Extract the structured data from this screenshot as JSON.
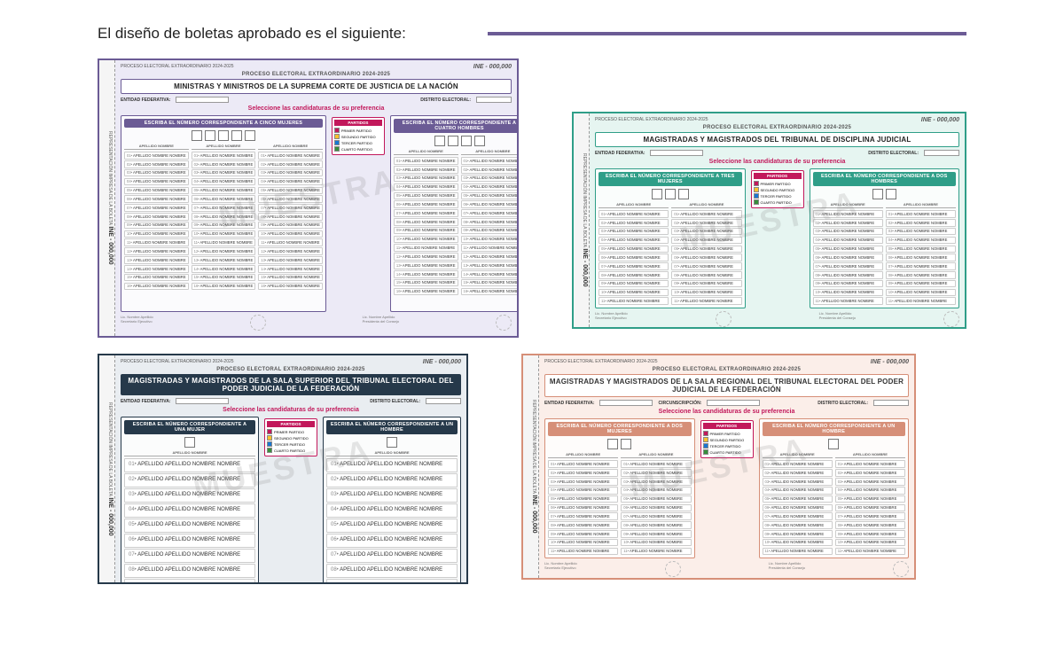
{
  "page": {
    "intro_text": "El diseño de boletas aprobado es el siguiente:",
    "accent_rule_color": "#6b5b95"
  },
  "common": {
    "process_title": "PROCESO ELECTORAL EXTRAORDINARIO 2024-2025",
    "ine_number": "INE - 000,000",
    "entity_label": "ENTIDAD FEDERATIVA:",
    "district_label": "DISTRITO ELECTORAL:",
    "circ_label": "CIRCUNSCRIPCIÓN:",
    "select_text": "Seleccione las candidaturas de su preferencia",
    "candidate_placeholder_long": "APELLIDO APELLIDO NOMBRE NOMBRE",
    "candidate_placeholder_short": "APELLIDO NOMBRE NOMBRE",
    "partidos_title": "PARTIDOS",
    "spine_extra": "REPRESENTACIÓN IMPRESA DE LA BOLETA",
    "colhead_text": "APELLIDO NOMBRE",
    "watermark": "MUESTRA",
    "partidos_list": [
      "PRIMER PARTIDO",
      "SEGUNDO PARTIDO",
      "TERCER PARTIDO",
      "CUARTO PARTIDO"
    ],
    "partidos_colors": [
      "#c2185b",
      "#fbc02d",
      "#1976d2",
      "#388e3c"
    ]
  },
  "ballots": {
    "purple": {
      "accent": "#8d82c4",
      "accent_dark": "#6b5b95",
      "bg_tint": "#eceaf6",
      "title": "MINISTRAS Y MINISTROS DE LA SUPREMA CORTE DE JUSTICIA DE LA NACIÓN",
      "section_left": "ESCRIBA EL NÚMERO CORRESPONDIENTE A CINCO MUJERES",
      "section_right": "ESCRIBA EL NÚMERO CORRESPONDIENTE A CUATRO HOMBRES",
      "left_boxes": 5,
      "right_boxes": 4,
      "left_cols": 3,
      "right_cols": 2,
      "rows_per_col": 16,
      "show_partidos": true,
      "extra_fields": [
        "entity",
        "district"
      ]
    },
    "teal": {
      "accent": "#5fbfa9",
      "accent_dark": "#2f9e88",
      "bg_tint": "#e6f5f1",
      "title": "MAGISTRADAS Y MAGISTRADOS DEL TRIBUNAL DE DISCIPLINA JUDICIAL",
      "section_left": "ESCRIBA EL NÚMERO CORRESPONDIENTE A TRES MUJERES",
      "section_right": "ESCRIBA EL NÚMERO CORRESPONDIENTE A DOS HOMBRES",
      "left_boxes": 3,
      "right_boxes": 2,
      "left_cols": 2,
      "right_cols": 2,
      "rows_per_col": 11,
      "show_partidos": true,
      "extra_fields": [
        "entity",
        "district"
      ]
    },
    "navy": {
      "accent": "#3c5366",
      "accent_dark": "#26394a",
      "bg_tint": "#e9edf1",
      "title": "MAGISTRADAS Y MAGISTRADOS DE LA SALA SUPERIOR DEL TRIBUNAL ELECTORAL DEL PODER JUDICIAL DE LA FEDERACIÓN",
      "section_left": "ESCRIBA EL NÚMERO CORRESPONDIENTE A UNA MUJER",
      "section_right": "ESCRIBA EL NÚMERO CORRESPONDIENTE A UN HOMBRE",
      "left_boxes": 1,
      "right_boxes": 1,
      "left_cols": 1,
      "right_cols": 1,
      "rows_per_col": 9,
      "candidate_large": true,
      "show_partidos": true,
      "extra_fields": [
        "entity",
        "district"
      ]
    },
    "salmon": {
      "accent": "#eecdc2",
      "accent_dark": "#d68f78",
      "bg_tint": "#fbeee9",
      "title": "MAGISTRADAS Y MAGISTRADOS DE LA SALA REGIONAL DEL TRIBUNAL ELECTORAL DEL PODER JUDICIAL DE LA FEDERACIÓN",
      "section_left": "ESCRIBA EL NÚMERO CORRESPONDIENTE A DOS MUJERES",
      "section_right": "ESCRIBA EL NÚMERO CORRESPONDIENTE A UN HOMBRE",
      "left_boxes": 2,
      "right_boxes": 1,
      "left_cols": 2,
      "right_cols": 2,
      "rows_per_col": 11,
      "show_partidos": true,
      "extra_fields": [
        "entity",
        "circ",
        "district"
      ]
    }
  }
}
